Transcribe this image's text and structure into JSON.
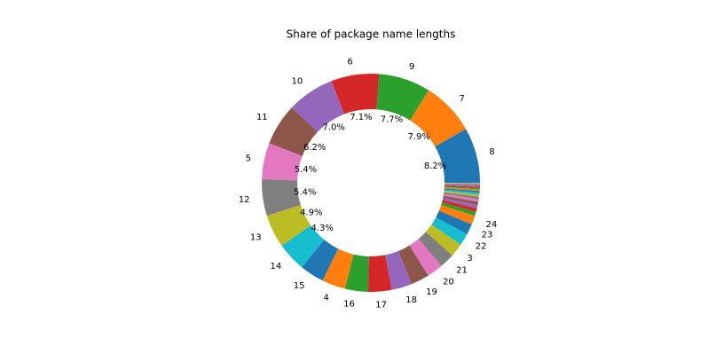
{
  "chart_data": {
    "type": "donut",
    "title": "Share of package name lengths",
    "categories": [
      "8",
      "7",
      "9",
      "6",
      "10",
      "11",
      "5",
      "12",
      "13",
      "14",
      "15",
      "4",
      "16",
      "17",
      "18",
      "19",
      "20",
      "21",
      "3",
      "22",
      "23",
      "24",
      null,
      null,
      null,
      null,
      null,
      null,
      null,
      null,
      null,
      null,
      null,
      null,
      null,
      null,
      null,
      null,
      null,
      null,
      null,
      null
    ],
    "values": [
      8.2,
      7.9,
      7.7,
      7.1,
      7.0,
      6.2,
      5.4,
      5.4,
      4.9,
      4.3,
      3.6,
      3.5,
      3.4,
      3.5,
      3.0,
      2.7,
      2.4,
      2.2,
      2.0,
      1.8,
      1.6,
      1.3,
      0.6,
      0.55,
      0.5,
      0.45,
      0.4,
      0.35,
      0.32,
      0.28,
      0.25,
      0.22,
      0.2,
      0.18,
      0.15,
      0.12,
      0.1,
      0.08,
      0.06,
      0.04,
      0.03,
      0.02
    ],
    "value_labels": [
      "8.2%",
      "7.9%",
      "7.7%",
      "7.1%",
      "7.0%",
      "6.2%",
      "5.4%",
      "5.4%",
      "4.9%",
      "4.3%",
      null,
      null,
      null,
      null,
      null,
      null,
      null,
      null,
      null,
      null,
      null,
      null,
      null,
      null,
      null,
      null,
      null,
      null,
      null,
      null,
      null,
      null,
      null,
      null,
      null,
      null,
      null,
      null,
      null,
      null,
      null,
      null
    ],
    "colors": [
      "#1f77b4",
      "#ff7f0e",
      "#2ca02c",
      "#d62728",
      "#9467bd",
      "#8c564b",
      "#e377c2",
      "#7f7f7f",
      "#bcbd22",
      "#17becf",
      "#1f77b4",
      "#ff7f0e",
      "#2ca02c",
      "#d62728",
      "#9467bd",
      "#8c564b",
      "#e377c2",
      "#7f7f7f",
      "#bcbd22",
      "#17becf",
      "#1f77b4",
      "#ff7f0e",
      "#2ca02c",
      "#d62728",
      "#9467bd",
      "#8c564b",
      "#e377c2",
      "#7f7f7f",
      "#bcbd22",
      "#17becf",
      "#1f77b4",
      "#ff7f0e",
      "#2ca02c",
      "#d62728",
      "#9467bd",
      "#8c564b",
      "#e377c2",
      "#7f7f7f",
      "#bcbd22",
      "#17becf",
      "#1f77b4",
      "#ff7f0e"
    ],
    "start_angle": 0
  }
}
